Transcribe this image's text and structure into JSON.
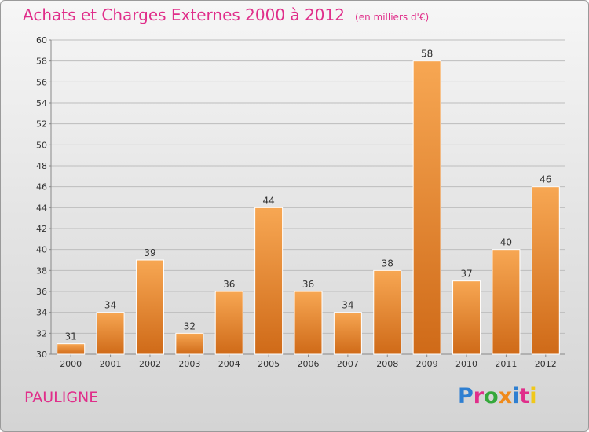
{
  "header": {
    "title": "Achats et Charges Externes 2000 à 2012",
    "unit": "(en milliers d'€)"
  },
  "footer": {
    "commune": "PAULIGNE",
    "logo_text": "Proxiti"
  },
  "colors": {
    "title": "#e02e8a",
    "bar_light": "#f7a753",
    "bar_dark": "#cf6a18",
    "logo_letters": [
      "#2e7fd1",
      "#e02e8a",
      "#35a83b",
      "#f08a1a",
      "#2e7fd1",
      "#e02e8a",
      "#f0c81a"
    ]
  },
  "chart_data": {
    "type": "bar",
    "title": "Achats et Charges Externes 2000 à 2012",
    "subtitle": "(en milliers d'€)",
    "categories": [
      "2000",
      "2001",
      "2002",
      "2003",
      "2004",
      "2005",
      "2006",
      "2007",
      "2008",
      "2009",
      "2010",
      "2011",
      "2012"
    ],
    "values": [
      31,
      34,
      39,
      32,
      36,
      44,
      36,
      34,
      38,
      58,
      37,
      40,
      46
    ],
    "ylim": [
      30,
      60
    ],
    "yticks": [
      30,
      32,
      34,
      36,
      38,
      40,
      42,
      44,
      46,
      48,
      50,
      52,
      54,
      56,
      58,
      60
    ],
    "grid": true,
    "legend": "none"
  }
}
